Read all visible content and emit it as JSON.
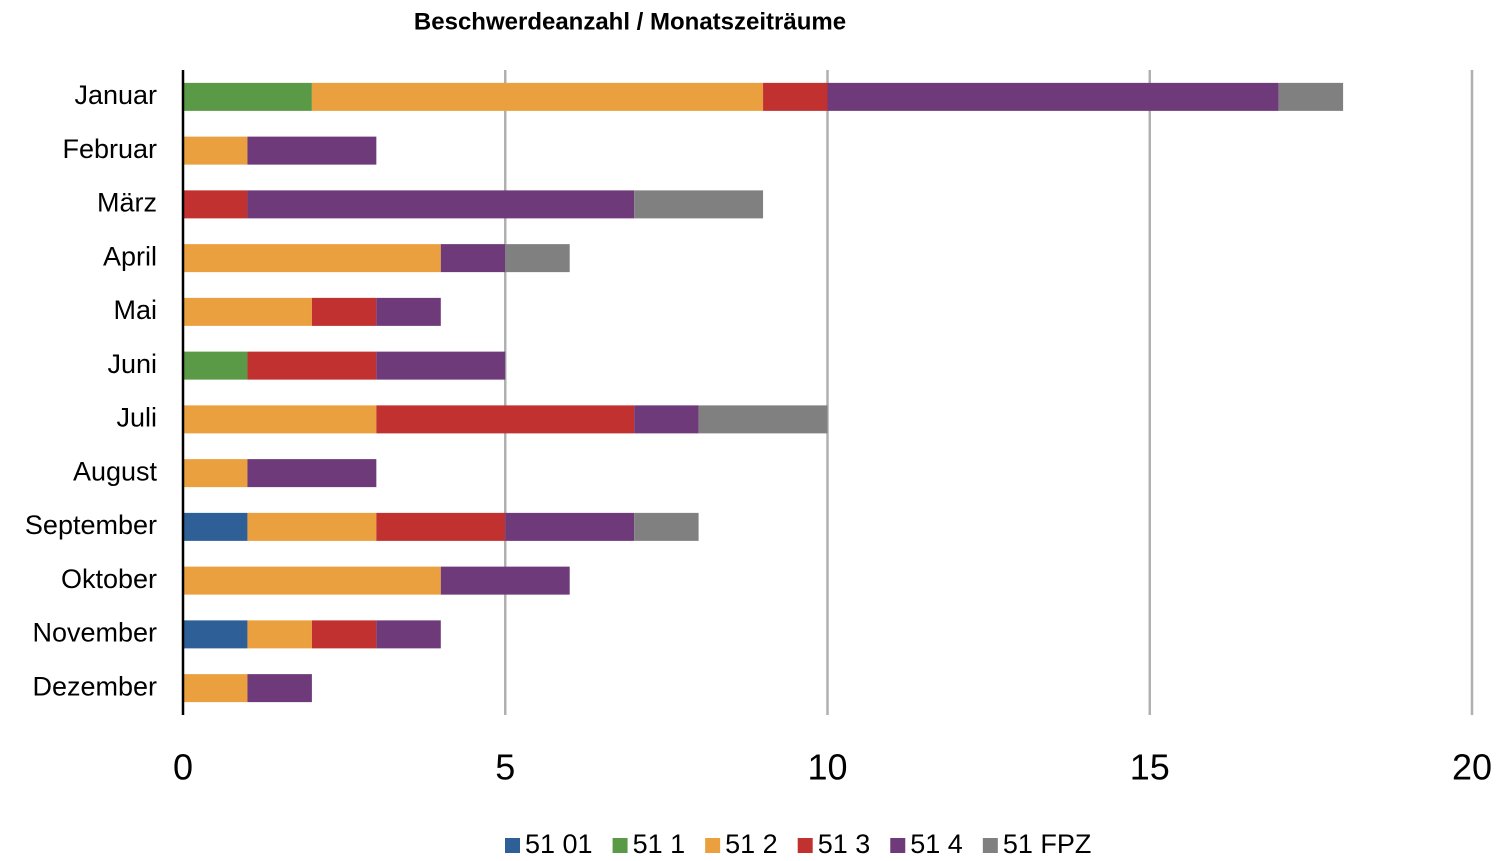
{
  "chart_data": {
    "type": "stacked_barh",
    "title": "Beschwerdeanzahl / Monatszeiträume",
    "categories": [
      "Januar",
      "Februar",
      "März",
      "April",
      "Mai",
      "Juni",
      "Juli",
      "August",
      "September",
      "Oktober",
      "November",
      "Dezember"
    ],
    "series": [
      {
        "name": "51 01",
        "color": "#2e5f96",
        "values": [
          0,
          0,
          0,
          0,
          0,
          0,
          0,
          0,
          1,
          0,
          1,
          0
        ]
      },
      {
        "name": "51 1",
        "color": "#5a9a46",
        "values": [
          2,
          0,
          0,
          0,
          0,
          1,
          0,
          0,
          0,
          0,
          0,
          0
        ]
      },
      {
        "name": "51 2",
        "color": "#eba03f",
        "values": [
          7,
          1,
          0,
          4,
          2,
          0,
          3,
          1,
          2,
          4,
          1,
          1
        ]
      },
      {
        "name": "51 3",
        "color": "#c0312f",
        "values": [
          1,
          0,
          1,
          0,
          1,
          2,
          4,
          0,
          2,
          0,
          1,
          0
        ]
      },
      {
        "name": "51 4",
        "color": "#6e3a7a",
        "values": [
          7,
          2,
          6,
          1,
          1,
          2,
          1,
          2,
          2,
          2,
          1,
          1
        ]
      },
      {
        "name": "51 FPZ",
        "color": "#808080",
        "values": [
          1,
          0,
          2,
          1,
          0,
          0,
          2,
          0,
          1,
          0,
          0,
          0
        ]
      }
    ],
    "xlim": [
      0,
      20
    ],
    "xticks": [
      0,
      5,
      10,
      15,
      20
    ],
    "grid": true,
    "legend": "bottom"
  }
}
